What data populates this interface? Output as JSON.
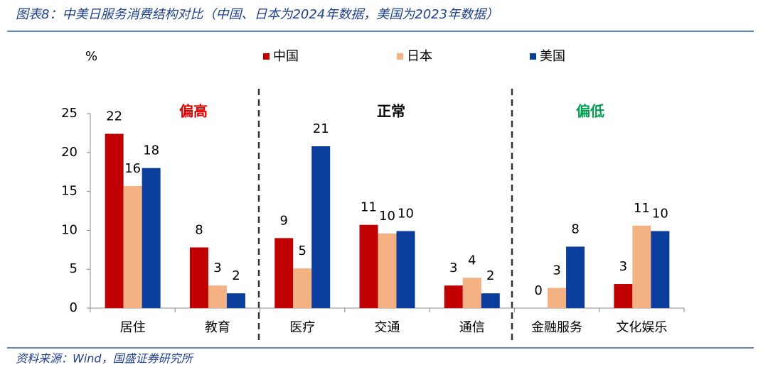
{
  "chart_data": {
    "type": "bar",
    "title": "图表8：中美日服务消费结构对比（中国、日本为2024年数据，美国为2023年数据）",
    "source": "资料来源：Wind，国盛证券研究所",
    "y_unit": "%",
    "categories": [
      "居住",
      "教育",
      "医疗",
      "交通",
      "通信",
      "金融服务",
      "文化娱乐"
    ],
    "series": [
      {
        "name": "中国",
        "color": "#c00000",
        "values": [
          22.4,
          7.8,
          9.0,
          10.7,
          2.9,
          0,
          3.1
        ],
        "value_labels": [
          "22",
          "8",
          "9",
          "11",
          "3",
          "0",
          "3"
        ]
      },
      {
        "name": "日本",
        "color": "#f4b183",
        "values": [
          15.7,
          2.9,
          5.1,
          9.6,
          3.9,
          2.6,
          10.6
        ],
        "value_labels": [
          "16",
          "3",
          "5",
          "10",
          "4",
          "3",
          "11"
        ]
      },
      {
        "name": "美国",
        "color": "#0a3d9c",
        "values": [
          18.0,
          1.9,
          20.8,
          9.9,
          1.9,
          7.9,
          9.9
        ],
        "value_labels": [
          "18",
          "2",
          "21",
          "10",
          "2",
          "8",
          "10"
        ]
      }
    ],
    "annotations": [
      {
        "text": "偏高",
        "color": "#e00000"
      },
      {
        "text": "正常",
        "color": "#000000"
      },
      {
        "text": "偏低",
        "color": "#00a050"
      }
    ],
    "ylim": [
      0,
      25
    ],
    "yticks": [
      0,
      5,
      10,
      15,
      20,
      25
    ],
    "grid": false
  }
}
